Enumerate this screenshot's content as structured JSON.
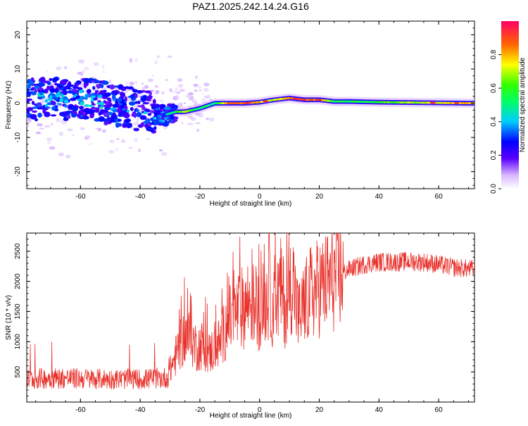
{
  "title": "PAZ1.2025.242.14.24.G16",
  "chart_data": [
    {
      "type": "heatmap",
      "xlabel": "Height of straight line (km)",
      "ylabel": "Frequency (Hz)",
      "xlim": [
        -78,
        72
      ],
      "ylim": [
        -25,
        24
      ],
      "xticks": [
        -60,
        -40,
        -20,
        0,
        20,
        40,
        60
      ],
      "yticks": [
        -20,
        -10,
        0,
        10,
        20
      ],
      "ridge": {
        "x": [
          -75,
          -70,
          -65,
          -60,
          -55,
          -50,
          -45,
          -40,
          -35,
          -32,
          -28,
          -25,
          -20,
          -15,
          -10,
          -5,
          0,
          5,
          10,
          15,
          20,
          25,
          30,
          40,
          50,
          60,
          70
        ],
        "freq": [
          1,
          1.5,
          1,
          1.5,
          1,
          -0.5,
          -1,
          -2,
          -3,
          -3.5,
          -2.5,
          -2.5,
          -1.5,
          0,
          0,
          0,
          0.3,
          1,
          1.5,
          1,
          1,
          0.5,
          0.5,
          0.3,
          0.2,
          0.1,
          0
        ],
        "amplitude": [
          0.3,
          0.3,
          0.3,
          0.3,
          0.3,
          0.25,
          0.25,
          0.3,
          0.4,
          0.4,
          0.55,
          0.7,
          0.5,
          0.5,
          0.85,
          0.9,
          0.8,
          0.7,
          0.85,
          0.9,
          0.85,
          0.55,
          0.55,
          0.6,
          0.7,
          0.75,
          0.8
        ]
      },
      "colorbar": {
        "label": "Normalized spectral amplitude",
        "range": [
          0,
          1
        ],
        "ticks": [
          "0.0",
          "0.2",
          "0.4",
          "0.6",
          "0.8"
        ]
      }
    },
    {
      "type": "line",
      "xlabel": "Height of straight line (km)",
      "ylabel": "SNR (10 * v/v)",
      "xlim": [
        -78,
        72
      ],
      "ylim": [
        0,
        2800
      ],
      "xticks": [
        -60,
        -40,
        -20,
        0,
        20,
        40,
        60
      ],
      "yticks": [
        500,
        1000,
        1500,
        2000,
        2500
      ],
      "series": [
        {
          "name": "SNR",
          "color": "#e8302a",
          "x": [
            -78,
            -70,
            -60,
            -50,
            -40,
            -31,
            -29,
            -27,
            -25,
            -23,
            -21,
            -19,
            -17,
            -15,
            -13,
            -11,
            -9,
            -7,
            -5,
            -3,
            -1,
            1,
            3,
            5,
            7,
            9,
            11,
            13,
            15,
            17,
            20,
            25,
            30,
            35,
            40,
            45,
            50,
            55,
            60,
            65,
            72
          ],
          "values": [
            380,
            400,
            390,
            380,
            380,
            400,
            650,
            900,
            1100,
            1050,
            900,
            950,
            800,
            900,
            1000,
            1300,
            1400,
            1500,
            1600,
            1700,
            1500,
            1600,
            1800,
            1500,
            1900,
            1500,
            2100,
            1400,
            1600,
            1800,
            1900,
            2050,
            2200,
            2280,
            2320,
            2320,
            2330,
            2320,
            2280,
            2230,
            2200
          ]
        }
      ]
    }
  ]
}
